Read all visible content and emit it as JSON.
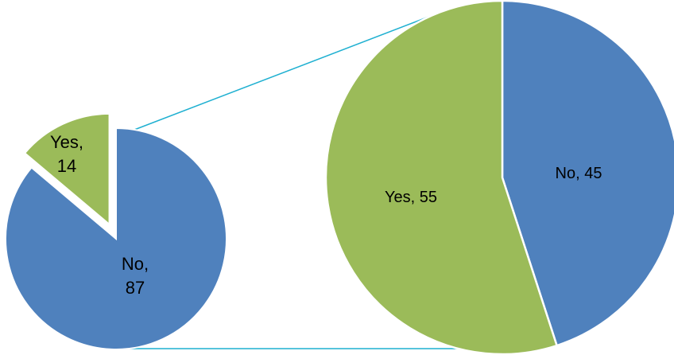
{
  "chart_data": [
    {
      "type": "pie",
      "series": [
        {
          "label": "No",
          "value": 87,
          "text_lines": [
            "No,",
            "87"
          ],
          "color": "#4f81bd"
        },
        {
          "label": "Yes",
          "value": 14,
          "text_lines": [
            "Yes,",
            "14"
          ],
          "color": "#9bbb59",
          "exploded": true
        }
      ]
    },
    {
      "type": "pie",
      "series": [
        {
          "label": "No",
          "value": 45,
          "text": "No, 45",
          "color": "#4f81bd"
        },
        {
          "label": "Yes",
          "value": 55,
          "text": "Yes, 55",
          "color": "#9bbb59"
        }
      ]
    }
  ],
  "colors": {
    "connector": "#1fb0d1",
    "slice_border": "#ffffff"
  }
}
